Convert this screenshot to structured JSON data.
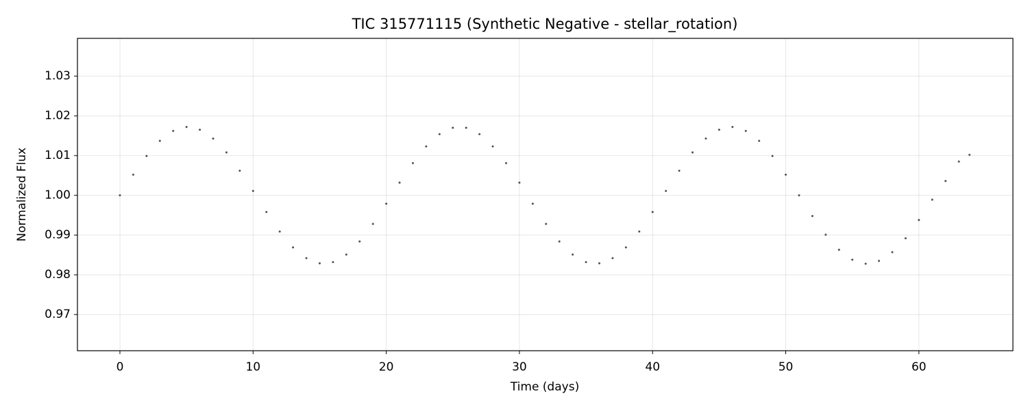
{
  "chart_data": {
    "type": "scatter",
    "title": "TIC 315771115 (Synthetic Negative - stellar_rotation)",
    "x_label": "Time (days)",
    "y_label": "Normalized Flux",
    "color": "#333333",
    "grid": true,
    "xlim": [
      -3.19,
      67.06
    ],
    "ylim": [
      0.9609,
      1.0395
    ],
    "xticks": [
      0,
      10,
      20,
      30,
      40,
      50,
      60
    ],
    "yticks": [
      0.97,
      0.98,
      0.99,
      {
        "value": 1,
        "label": "1.00"
      },
      1.01,
      1.02,
      1.03
    ],
    "x": [
      0,
      1,
      2,
      3,
      4,
      5,
      6,
      7,
      8,
      9,
      10,
      11,
      12,
      13,
      14,
      15,
      16,
      17,
      18,
      19,
      20,
      21,
      22,
      23,
      24,
      25,
      26,
      27,
      28,
      29,
      30,
      31,
      32,
      33,
      34,
      35,
      36,
      37,
      38,
      39,
      40,
      41,
      42,
      43,
      44,
      45,
      46,
      47,
      48,
      49,
      50,
      51,
      52,
      53,
      54,
      55,
      56,
      57,
      58,
      59,
      60,
      61,
      62,
      63,
      63.8
    ],
    "values": [
      1.0,
      1.0052,
      1.0099,
      1.0137,
      1.0162,
      1.0172,
      1.0165,
      1.0143,
      1.0108,
      1.0062,
      1.0011,
      0.9958,
      0.9909,
      0.9869,
      0.9842,
      0.9829,
      0.9832,
      0.9851,
      0.9884,
      0.9928,
      0.9979,
      1.0032,
      1.0081,
      1.0123,
      1.0154,
      1.017,
      1.017,
      1.0154,
      1.0123,
      1.0081,
      1.0032,
      0.9979,
      0.9928,
      0.9884,
      0.9851,
      0.9832,
      0.9829,
      0.9842,
      0.9869,
      0.9909,
      0.9958,
      1.0011,
      1.0062,
      1.0108,
      1.0143,
      1.0165,
      1.0172,
      1.0162,
      1.0137,
      1.0099,
      1.0052,
      1.0,
      0.9948,
      0.9901,
      0.9863,
      0.9838,
      0.9828,
      0.9835,
      0.9857,
      0.9892,
      0.9938,
      0.9989,
      1.0036,
      1.0085,
      1.0102
    ]
  }
}
